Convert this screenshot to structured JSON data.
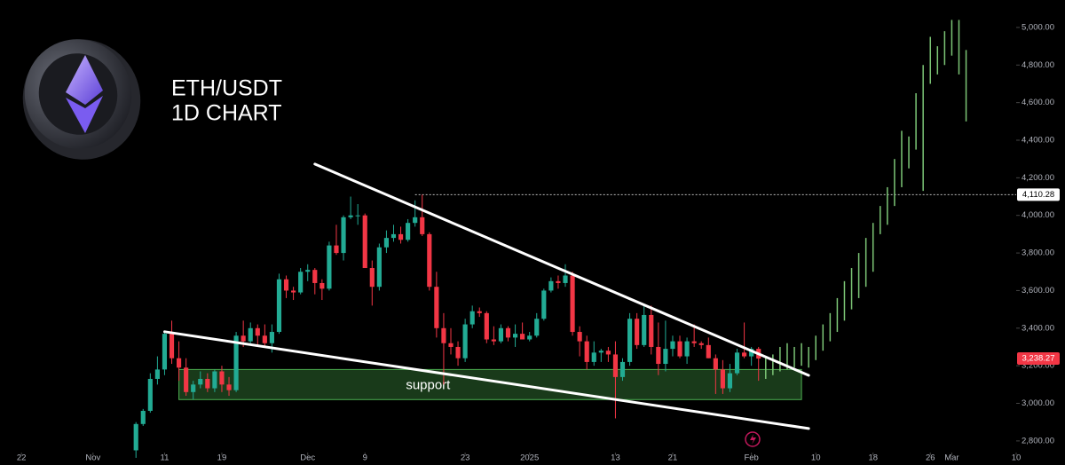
{
  "chart_data": {
    "type": "candlestick",
    "title": "ETH/USDT",
    "subtitle": "1D CHART",
    "up_color": "#22ab94",
    "down_color": "#f23645",
    "candles": {
      "x": [
        "2024-11-07",
        "2024-11-08",
        "2024-11-09",
        "2024-11-10",
        "2024-11-11",
        "2024-11-12",
        "2024-11-13",
        "2024-11-14",
        "2024-11-15",
        "2024-11-16",
        "2024-11-17",
        "2024-11-18",
        "2024-11-19",
        "2024-11-20",
        "2024-11-21",
        "2024-11-22",
        "2024-11-23",
        "2024-11-24",
        "2024-11-25",
        "2024-11-26",
        "2024-11-27",
        "2024-11-28",
        "2024-11-29",
        "2024-11-30",
        "2024-12-01",
        "2024-12-02",
        "2024-12-03",
        "2024-12-04",
        "2024-12-05",
        "2024-12-06",
        "2024-12-07",
        "2024-12-08",
        "2024-12-09",
        "2024-12-10",
        "2024-12-11",
        "2024-12-12",
        "2024-12-13",
        "2024-12-14",
        "2024-12-15",
        "2024-12-16",
        "2024-12-17",
        "2024-12-18",
        "2024-12-19",
        "2024-12-20",
        "2024-12-21",
        "2024-12-22",
        "2024-12-23",
        "2024-12-24",
        "2024-12-25",
        "2024-12-26",
        "2024-12-27",
        "2024-12-28",
        "2024-12-29",
        "2024-12-30",
        "2024-12-31",
        "2025-01-01",
        "2025-01-02",
        "2025-01-03",
        "2025-01-04",
        "2025-01-05",
        "2025-01-06",
        "2025-01-07",
        "2025-01-08",
        "2025-01-09",
        "2025-01-10",
        "2025-01-11",
        "2025-01-12",
        "2025-01-13",
        "2025-01-14",
        "2025-01-15",
        "2025-01-16",
        "2025-01-17",
        "2025-01-18",
        "2025-01-19",
        "2025-01-20",
        "2025-01-21",
        "2025-01-22",
        "2025-01-23",
        "2025-01-24",
        "2025-01-25",
        "2025-01-26",
        "2025-01-27",
        "2025-01-28",
        "2025-01-29",
        "2025-01-30",
        "2025-01-31",
        "2025-02-01",
        "2025-02-02"
      ],
      "open": [
        2750,
        2890,
        2960,
        3130,
        3180,
        3370,
        3240,
        3190,
        3060,
        3100,
        3130,
        3080,
        3170,
        3100,
        3070,
        3360,
        3330,
        3400,
        3360,
        3320,
        3380,
        3660,
        3600,
        3590,
        3700,
        3710,
        3640,
        3610,
        3840,
        3800,
        3990,
        4000,
        4000,
        3720,
        3620,
        3830,
        3880,
        3900,
        3870,
        3960,
        3990,
        3900,
        3620,
        3400,
        3320,
        3300,
        3240,
        3420,
        3490,
        3480,
        3340,
        3330,
        3400,
        3350,
        3370,
        3340,
        3360,
        3450,
        3600,
        3650,
        3640,
        3680,
        3380,
        3330,
        3220,
        3270,
        3280,
        3260,
        3140,
        3220,
        3450,
        3310,
        3470,
        3300,
        3210,
        3290,
        3330,
        3250,
        3330,
        3320,
        3310,
        3240,
        3180,
        3080,
        3160,
        3270,
        3250,
        3290
      ],
      "high": [
        2900,
        2970,
        3160,
        3250,
        3380,
        3440,
        3330,
        3240,
        3120,
        3170,
        3160,
        3180,
        3200,
        3140,
        3380,
        3440,
        3430,
        3420,
        3420,
        3420,
        3690,
        3680,
        3620,
        3720,
        3740,
        3720,
        3660,
        3860,
        3950,
        4000,
        4100,
        4060,
        4010,
        3760,
        3850,
        3920,
        3950,
        3940,
        3980,
        4080,
        4110,
        3910,
        3700,
        3480,
        3400,
        3330,
        3450,
        3520,
        3510,
        3490,
        3410,
        3420,
        3410,
        3420,
        3430,
        3380,
        3480,
        3610,
        3670,
        3680,
        3740,
        3700,
        3410,
        3360,
        3330,
        3290,
        3300,
        3330,
        3240,
        3480,
        3480,
        3520,
        3520,
        3430,
        3440,
        3360,
        3360,
        3350,
        3420,
        3330,
        3350,
        3260,
        3230,
        3210,
        3290,
        3430,
        3300,
        3300
      ],
      "low": [
        2710,
        2880,
        2950,
        3100,
        3150,
        3210,
        3120,
        3040,
        3020,
        3080,
        3060,
        3060,
        3060,
        3040,
        3060,
        3300,
        3320,
        3300,
        3300,
        3270,
        3370,
        3560,
        3550,
        3580,
        3650,
        3580,
        3550,
        3600,
        3790,
        3760,
        3980,
        3950,
        3740,
        3520,
        3600,
        3800,
        3860,
        3850,
        3860,
        3940,
        3890,
        3600,
        3350,
        3100,
        3260,
        3200,
        3220,
        3400,
        3460,
        3320,
        3310,
        3320,
        3330,
        3300,
        3340,
        3330,
        3350,
        3440,
        3590,
        3610,
        3620,
        3360,
        3250,
        3180,
        3200,
        3220,
        3220,
        2920,
        3120,
        3200,
        3290,
        3300,
        3260,
        3150,
        3170,
        3250,
        3240,
        3210,
        3300,
        3290,
        3240,
        3050,
        3050,
        3060,
        3150,
        3240,
        3200,
        3120
      ],
      "close": [
        2890,
        2960,
        3130,
        3180,
        3370,
        3240,
        3190,
        3060,
        3100,
        3130,
        3080,
        3170,
        3100,
        3070,
        3360,
        3330,
        3400,
        3360,
        3320,
        3380,
        3660,
        3600,
        3590,
        3700,
        3710,
        3640,
        3610,
        3840,
        3800,
        3990,
        4000,
        4000,
        3720,
        3620,
        3830,
        3880,
        3900,
        3870,
        3960,
        3990,
        3900,
        3620,
        3400,
        3320,
        3300,
        3240,
        3420,
        3490,
        3480,
        3340,
        3330,
        3400,
        3350,
        3370,
        3340,
        3360,
        3450,
        3600,
        3650,
        3640,
        3680,
        3380,
        3330,
        3220,
        3270,
        3280,
        3260,
        3140,
        3220,
        3450,
        3310,
        3470,
        3300,
        3210,
        3290,
        3330,
        3250,
        3330,
        3320,
        3310,
        3240,
        3180,
        3080,
        3160,
        3270,
        3250,
        3290,
        3238.27
      ]
    },
    "projection": {
      "color": "#7cc576",
      "x": [
        "2025-02-03",
        "2025-02-04",
        "2025-02-05",
        "2025-02-06",
        "2025-02-07",
        "2025-02-08",
        "2025-02-09",
        "2025-02-10",
        "2025-02-11",
        "2025-02-12",
        "2025-02-13",
        "2025-02-14",
        "2025-02-15",
        "2025-02-16",
        "2025-02-17",
        "2025-02-18",
        "2025-02-19",
        "2025-02-20",
        "2025-02-21",
        "2025-02-22",
        "2025-02-23",
        "2025-02-24",
        "2025-02-25",
        "2025-02-26",
        "2025-02-27",
        "2025-02-28",
        "2025-03-01",
        "2025-03-02",
        "2025-03-03"
      ],
      "low": [
        3130,
        3150,
        3170,
        3180,
        3190,
        3200,
        3190,
        3230,
        3280,
        3330,
        3380,
        3440,
        3500,
        3560,
        3620,
        3700,
        3900,
        3950,
        4050,
        4150,
        4250,
        4350,
        4130,
        4700,
        4750,
        4800,
        4850,
        4750,
        4500
      ],
      "high": [
        3250,
        3260,
        3300,
        3320,
        3300,
        3320,
        3300,
        3360,
        3420,
        3480,
        3560,
        3650,
        3720,
        3800,
        3880,
        3960,
        4050,
        4150,
        4300,
        4450,
        4420,
        4650,
        4800,
        4950,
        4900,
        4980,
        5040,
        5040,
        4880
      ]
    },
    "trendlines": [
      {
        "x": [
          "2024-12-02",
          "2025-02-09"
        ],
        "y": [
          4273,
          3149
        ]
      },
      {
        "x": [
          "2024-11-11",
          "2025-02-09"
        ],
        "y": [
          3381,
          2866
        ]
      }
    ],
    "support": {
      "label": "support",
      "x": [
        "2024-11-13",
        "2025-02-08"
      ],
      "y": [
        3020,
        3180
      ]
    },
    "level": {
      "value": 4110.28,
      "label": "4,110.28",
      "x": "2024-12-16"
    },
    "last_price": {
      "value": 3238.27,
      "label": "3,238.27"
    },
    "xlim": [
      "2024-10-19",
      "2025-03-10"
    ],
    "ylim": [
      2738,
      5146
    ],
    "xticks": [
      {
        "value": "2024-10-22",
        "label": "22"
      },
      {
        "value": "2024-11-01",
        "label": "Nov"
      },
      {
        "value": "2024-11-11",
        "label": "11"
      },
      {
        "value": "2024-11-19",
        "label": "19"
      },
      {
        "value": "2024-12-01",
        "label": "Dec"
      },
      {
        "value": "2024-12-09",
        "label": "9"
      },
      {
        "value": "2024-12-23",
        "label": "23"
      },
      {
        "value": "2025-01-01",
        "label": "2025"
      },
      {
        "value": "2025-01-13",
        "label": "13"
      },
      {
        "value": "2025-01-21",
        "label": "21"
      },
      {
        "value": "2025-02-01",
        "label": "Feb"
      },
      {
        "value": "2025-02-10",
        "label": "10"
      },
      {
        "value": "2025-02-18",
        "label": "18"
      },
      {
        "value": "2025-02-26",
        "label": "26"
      },
      {
        "value": "2025-03-01",
        "label": "Mar"
      },
      {
        "value": "2025-03-10",
        "label": "10"
      }
    ],
    "yticks": [
      {
        "value": 2800,
        "label": "2,800.00"
      },
      {
        "value": 3000,
        "label": "3,000.00"
      },
      {
        "value": 3200,
        "label": "3,200.00"
      },
      {
        "value": 3400,
        "label": "3,400.00"
      },
      {
        "value": 3600,
        "label": "3,600.00"
      },
      {
        "value": 3800,
        "label": "3,800.00"
      },
      {
        "value": 4000,
        "label": "4,000.00"
      },
      {
        "value": 4200,
        "label": "4,200.00"
      },
      {
        "value": 4400,
        "label": "4,400.00"
      },
      {
        "value": 4600,
        "label": "4,600.00"
      },
      {
        "value": 4800,
        "label": "4,800.00"
      },
      {
        "value": 5000,
        "label": "5,000.00"
      }
    ]
  }
}
